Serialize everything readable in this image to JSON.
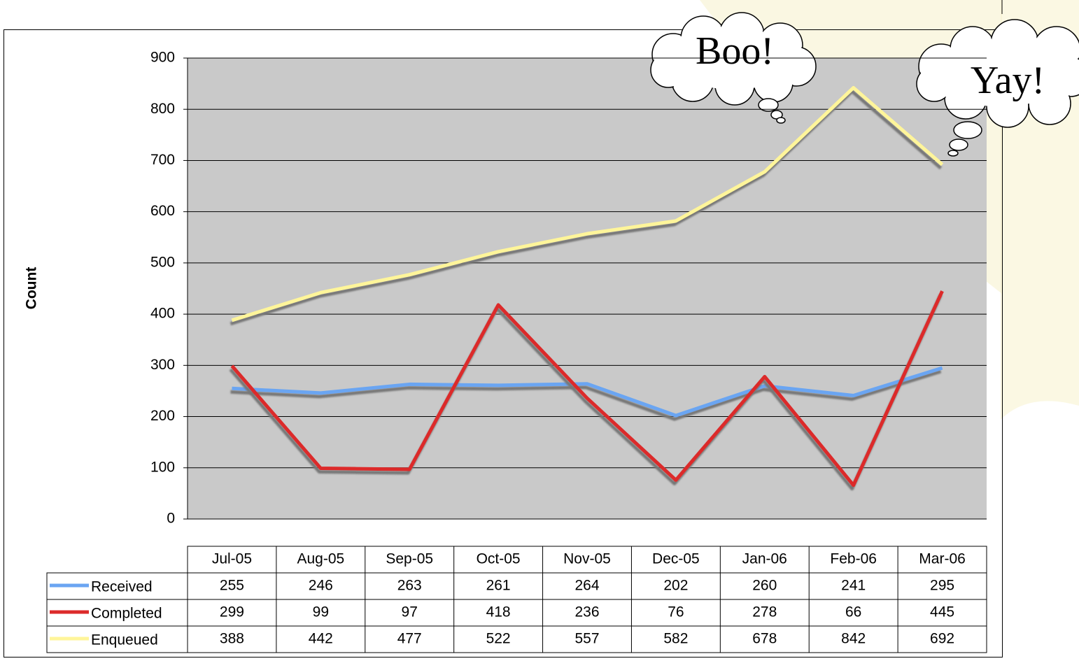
{
  "chart_data": {
    "type": "line",
    "y_label": "Count",
    "categories": [
      "Jul-05",
      "Aug-05",
      "Sep-05",
      "Oct-05",
      "Nov-05",
      "Dec-05",
      "Jan-06",
      "Feb-06",
      "Mar-06"
    ],
    "series": [
      {
        "name": "Received",
        "color": "#6aa5f2",
        "values": [
          255,
          246,
          263,
          261,
          264,
          202,
          260,
          241,
          295
        ]
      },
      {
        "name": "Completed",
        "color": "#dc2a2a",
        "values": [
          299,
          99,
          97,
          418,
          236,
          76,
          278,
          66,
          445
        ]
      },
      {
        "name": "Enqueued",
        "color": "#fff59a",
        "values": [
          388,
          442,
          477,
          522,
          557,
          582,
          678,
          842,
          692
        ]
      }
    ],
    "ylim": [
      0,
      900
    ],
    "yticks": [
      0,
      100,
      200,
      300,
      400,
      500,
      600,
      700,
      800,
      900
    ],
    "grid": true,
    "annotations": [
      "Boo!",
      "Yay!"
    ]
  }
}
